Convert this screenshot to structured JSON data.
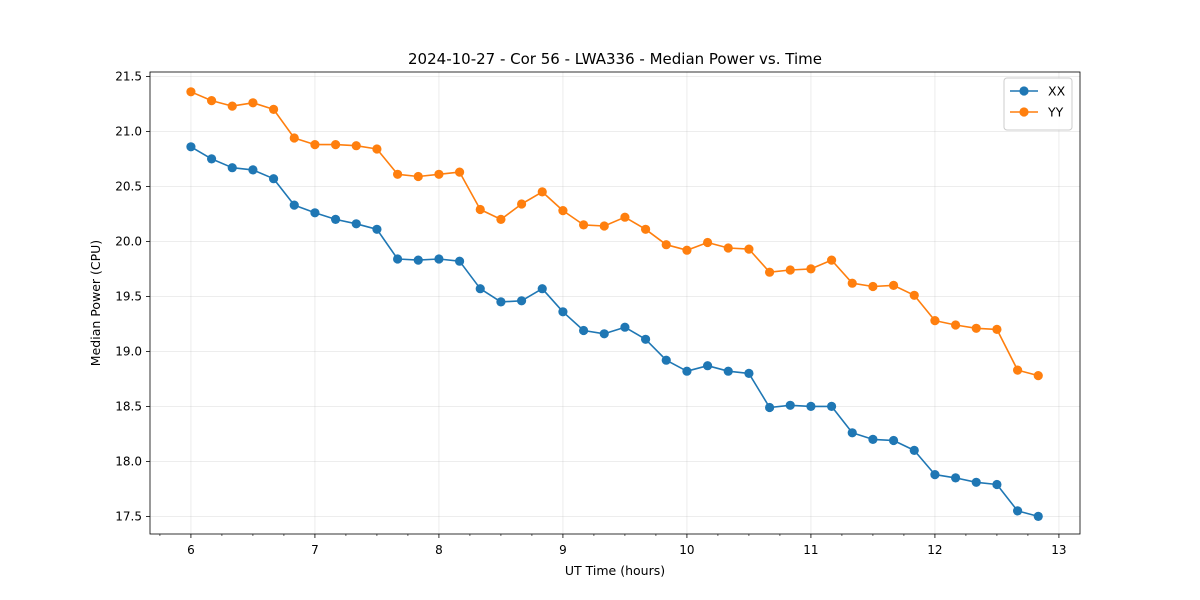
{
  "chart_data": {
    "type": "line",
    "title": "2024-10-27 - Cor 56 - LWA336 - Median Power vs. Time",
    "xlabel": "UT Time (hours)",
    "ylabel": "Median Power (CPU)",
    "xlim": [
      5.67,
      13.17
    ],
    "ylim": [
      17.34,
      21.54
    ],
    "x_ticks": [
      6,
      7,
      8,
      9,
      10,
      11,
      12,
      13
    ],
    "x_tick_labels": [
      "6",
      "7",
      "8",
      "9",
      "10",
      "11",
      "12",
      "13"
    ],
    "x_minor_step": 0.25,
    "y_ticks": [
      17.5,
      18.0,
      18.5,
      19.0,
      19.5,
      20.0,
      20.5,
      21.0,
      21.5
    ],
    "y_tick_labels": [
      "17.5",
      "18.0",
      "18.5",
      "19.0",
      "19.5",
      "20.0",
      "20.5",
      "21.0",
      "21.5"
    ],
    "grid": true,
    "legend_position": "top-right",
    "x": [
      6.0,
      6.1667,
      6.3333,
      6.5,
      6.6667,
      6.8333,
      7.0,
      7.1667,
      7.3333,
      7.5,
      7.6667,
      7.8333,
      8.0,
      8.1667,
      8.3333,
      8.5,
      8.6667,
      8.8333,
      9.0,
      9.1667,
      9.3333,
      9.5,
      9.6667,
      9.8333,
      10.0,
      10.1667,
      10.3333,
      10.5,
      10.6667,
      10.8333,
      11.0,
      11.1667,
      11.3333,
      11.5,
      11.6667,
      11.8333,
      12.0,
      12.1667,
      12.3333,
      12.5,
      12.6667,
      12.8333
    ],
    "series": [
      {
        "name": "XX",
        "color": "#1f77b4",
        "values": [
          20.86,
          20.75,
          20.67,
          20.65,
          20.57,
          20.33,
          20.26,
          20.2,
          20.16,
          20.11,
          19.84,
          19.83,
          19.84,
          19.82,
          19.57,
          19.45,
          19.46,
          19.57,
          19.36,
          19.19,
          19.16,
          19.22,
          19.11,
          18.92,
          18.82,
          18.87,
          18.82,
          18.8,
          18.49,
          18.51,
          18.5,
          18.5,
          18.26,
          18.2,
          18.19,
          18.1,
          17.88,
          17.85,
          17.81,
          17.79,
          17.55,
          17.5
        ]
      },
      {
        "name": "YY",
        "color": "#ff7f0e",
        "values": [
          21.36,
          21.28,
          21.23,
          21.26,
          21.2,
          20.94,
          20.88,
          20.88,
          20.87,
          20.84,
          20.61,
          20.59,
          20.61,
          20.63,
          20.29,
          20.2,
          20.34,
          20.45,
          20.28,
          20.15,
          20.14,
          20.22,
          20.11,
          19.97,
          19.92,
          19.99,
          19.94,
          19.93,
          19.72,
          19.74,
          19.75,
          19.83,
          19.62,
          19.59,
          19.6,
          19.51,
          19.28,
          19.24,
          19.21,
          19.2,
          18.83,
          18.78
        ]
      }
    ]
  }
}
